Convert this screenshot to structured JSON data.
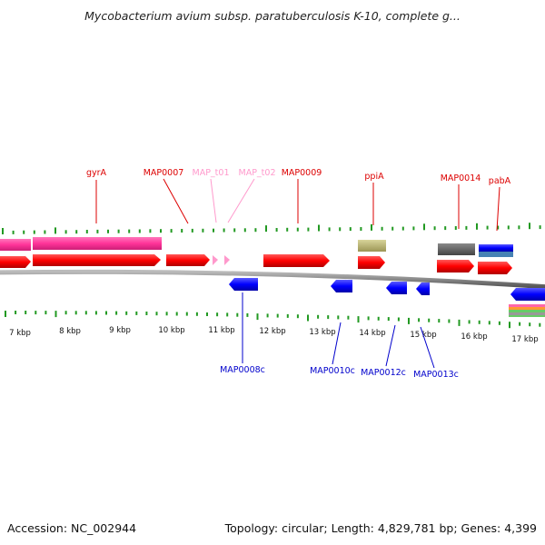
{
  "title": "Mycobacterium avium subsp. paratuberculosis K-10, complete g...",
  "footer": {
    "accession": "Accession: NC_002944",
    "summary": "Topology: circular; Length: 4,829,781 bp; Genes: 4,399"
  },
  "colors": {
    "forward_cds": "#ff0000",
    "reverse_cds": "#0000ff",
    "trna": "#ff99cc",
    "gene": "#ff3399",
    "backbone": "#888888",
    "ticks": "#229922",
    "label_forward": "#dd0000",
    "label_trna": "#ff99cc",
    "label_reverse": "#0000cc",
    "misc_olive": "#bdb76b",
    "misc_gray": "#666666",
    "misc_steel": "#4682b4"
  },
  "kbp_labels": [
    "7 kbp",
    "8 kbp",
    "9 kbp",
    "10 kbp",
    "11 kbp",
    "12 kbp",
    "13 kbp",
    "14 kbp",
    "15 kbp",
    "16 kbp",
    "17 kbp"
  ],
  "forward_labels": [
    "gyrA",
    "MAP0007",
    "MAP_t01",
    "MAP_t02",
    "MAP0009",
    "ppiA",
    "MAP0014",
    "pabA"
  ],
  "reverse_labels": [
    "MAP0008c",
    "MAP0010c",
    "MAP0012c",
    "MAP0013c"
  ]
}
